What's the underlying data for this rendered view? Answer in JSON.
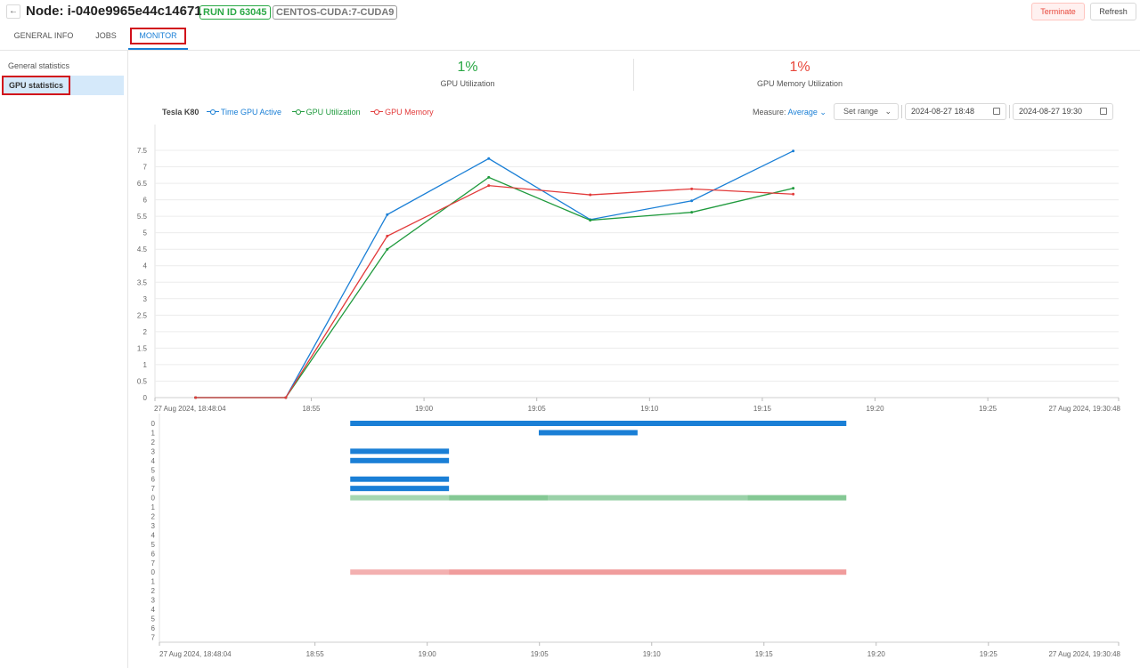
{
  "header": {
    "back_icon": "arrow-left-icon",
    "title": "Node: i-040e9965e44c14671",
    "run_tag": "RUN ID 63045",
    "tool_tag": "CENTOS-CUDA:7-CUDA9",
    "terminate_label": "Terminate",
    "refresh_label": "Refresh"
  },
  "tabs": [
    "GENERAL INFO",
    "JOBS",
    "MONITOR"
  ],
  "active_tab": "MONITOR",
  "sidebar": {
    "items": [
      "General statistics",
      "GPU statistics"
    ],
    "selected": "GPU statistics"
  },
  "summary": [
    {
      "value": "1%",
      "label": "GPU Utilization",
      "color": "#2aa845"
    },
    {
      "value": "1%",
      "label": "GPU Memory Utilization",
      "color": "#e8483c"
    }
  ],
  "legend": {
    "device": "Tesla K80",
    "items": [
      {
        "label": "Time GPU Active",
        "color": "#1a7fd6"
      },
      {
        "label": "GPU Utilization",
        "color": "#1f9a3d"
      },
      {
        "label": "GPU Memory",
        "color": "#e23a3a"
      }
    ]
  },
  "controls": {
    "measure_label": "Measure:",
    "measure_value": "Average",
    "set_range_label": "Set range",
    "date_from": "2024-08-27 18:48",
    "date_to": "2024-08-27 19:30"
  },
  "colors": {
    "time_gpu_active": "#1a7fd6",
    "gpu_utilization": "#1f9a3d",
    "gpu_memory": "#e23a3a"
  },
  "chart_data": [
    {
      "type": "line",
      "x_min_label": "27 Aug 2024, 18:48:04",
      "x_max_label": "27 Aug 2024, 19:30:48",
      "x_range_minutes": [
        0,
        42.73
      ],
      "x_ticks": [
        {
          "label": "27 Aug 2024, 18:48:04",
          "minute": 0,
          "anchor": "end"
        },
        {
          "label": "18:55",
          "minute": 6.93
        },
        {
          "label": "19:00",
          "minute": 11.93
        },
        {
          "label": "19:05",
          "minute": 16.93
        },
        {
          "label": "19:10",
          "minute": 21.93
        },
        {
          "label": "19:15",
          "minute": 26.93
        },
        {
          "label": "19:20",
          "minute": 31.93
        },
        {
          "label": "19:25",
          "minute": 36.93
        },
        {
          "label": "27 Aug 2024, 19:30:48",
          "minute": 42.73,
          "anchor": "end"
        }
      ],
      "y_ticks": [
        "0",
        "0.5",
        "1",
        "1.5",
        "2",
        "2.5",
        "3",
        "3.5",
        "4",
        "4.5",
        "5",
        "5.5",
        "6",
        "6.5",
        "7",
        "7.5"
      ],
      "ylim": [
        0,
        7.5
      ],
      "grid": true,
      "series": [
        {
          "name": "Time GPU Active",
          "color": "#1a7fd6",
          "x": [
            1.8,
            5.8,
            10.3,
            14.8,
            19.3,
            23.8,
            28.3
          ],
          "y": [
            0,
            0,
            5.55,
            7.25,
            5.4,
            5.97,
            7.48
          ]
        },
        {
          "name": "GPU Utilization",
          "color": "#1f9a3d",
          "x": [
            1.8,
            5.8,
            10.3,
            14.8,
            19.3,
            23.8,
            28.3
          ],
          "y": [
            0,
            0,
            4.5,
            6.68,
            5.38,
            5.62,
            6.35
          ]
        },
        {
          "name": "GPU Memory",
          "color": "#e23a3a",
          "x": [
            1.8,
            5.8,
            10.3,
            14.8,
            19.3,
            23.8,
            28.3
          ],
          "y": [
            0,
            0,
            4.9,
            6.43,
            6.15,
            6.33,
            6.17
          ]
        }
      ]
    },
    {
      "type": "heatmap",
      "x_ticks": [
        {
          "label": "27 Aug 2024, 18:48:04",
          "minute": 0,
          "anchor": "end"
        },
        {
          "label": "18:55",
          "minute": 6.93
        },
        {
          "label": "19:00",
          "minute": 11.93
        },
        {
          "label": "19:05",
          "minute": 16.93
        },
        {
          "label": "19:10",
          "minute": 21.93
        },
        {
          "label": "19:15",
          "minute": 26.93
        },
        {
          "label": "19:20",
          "minute": 31.93
        },
        {
          "label": "19:25",
          "minute": 36.93
        },
        {
          "label": "27 Aug 2024, 19:30:48",
          "minute": 42.73,
          "anchor": "end"
        }
      ],
      "x_range_minutes": [
        0,
        42.73
      ],
      "groups": [
        {
          "name": "Time GPU Active",
          "color": "#1a7fd6",
          "rows": [
            "0",
            "1",
            "2",
            "3",
            "4",
            "5",
            "6",
            "7"
          ],
          "bars": [
            {
              "row": 0,
              "start": 8.5,
              "end": 30.6,
              "opacity": 1
            },
            {
              "row": 1,
              "start": 16.9,
              "end": 21.3,
              "opacity": 1
            },
            {
              "row": 3,
              "start": 8.5,
              "end": 12.9,
              "opacity": 1
            },
            {
              "row": 4,
              "start": 8.5,
              "end": 12.9,
              "opacity": 1
            },
            {
              "row": 6,
              "start": 8.5,
              "end": 12.9,
              "opacity": 1
            },
            {
              "row": 7,
              "start": 8.5,
              "end": 12.9,
              "opacity": 1
            }
          ]
        },
        {
          "name": "GPU Utilization",
          "color": "#1f9a3d",
          "rows": [
            "0",
            "1",
            "2",
            "3",
            "4",
            "5",
            "6",
            "7"
          ],
          "bars": [
            {
              "row": 0,
              "start": 8.5,
              "end": 12.9,
              "opacity": 0.4
            },
            {
              "row": 0,
              "start": 12.9,
              "end": 17.3,
              "opacity": 0.55
            },
            {
              "row": 0,
              "start": 17.3,
              "end": 26.2,
              "opacity": 0.45
            },
            {
              "row": 0,
              "start": 26.2,
              "end": 30.6,
              "opacity": 0.55
            }
          ]
        },
        {
          "name": "GPU Memory",
          "color": "#e23a3a",
          "rows": [
            "0",
            "1",
            "2",
            "3",
            "4",
            "5",
            "6",
            "7"
          ],
          "bars": [
            {
              "row": 0,
              "start": 8.5,
              "end": 12.9,
              "opacity": 0.4
            },
            {
              "row": 0,
              "start": 12.9,
              "end": 30.6,
              "opacity": 0.5
            }
          ]
        }
      ]
    }
  ]
}
